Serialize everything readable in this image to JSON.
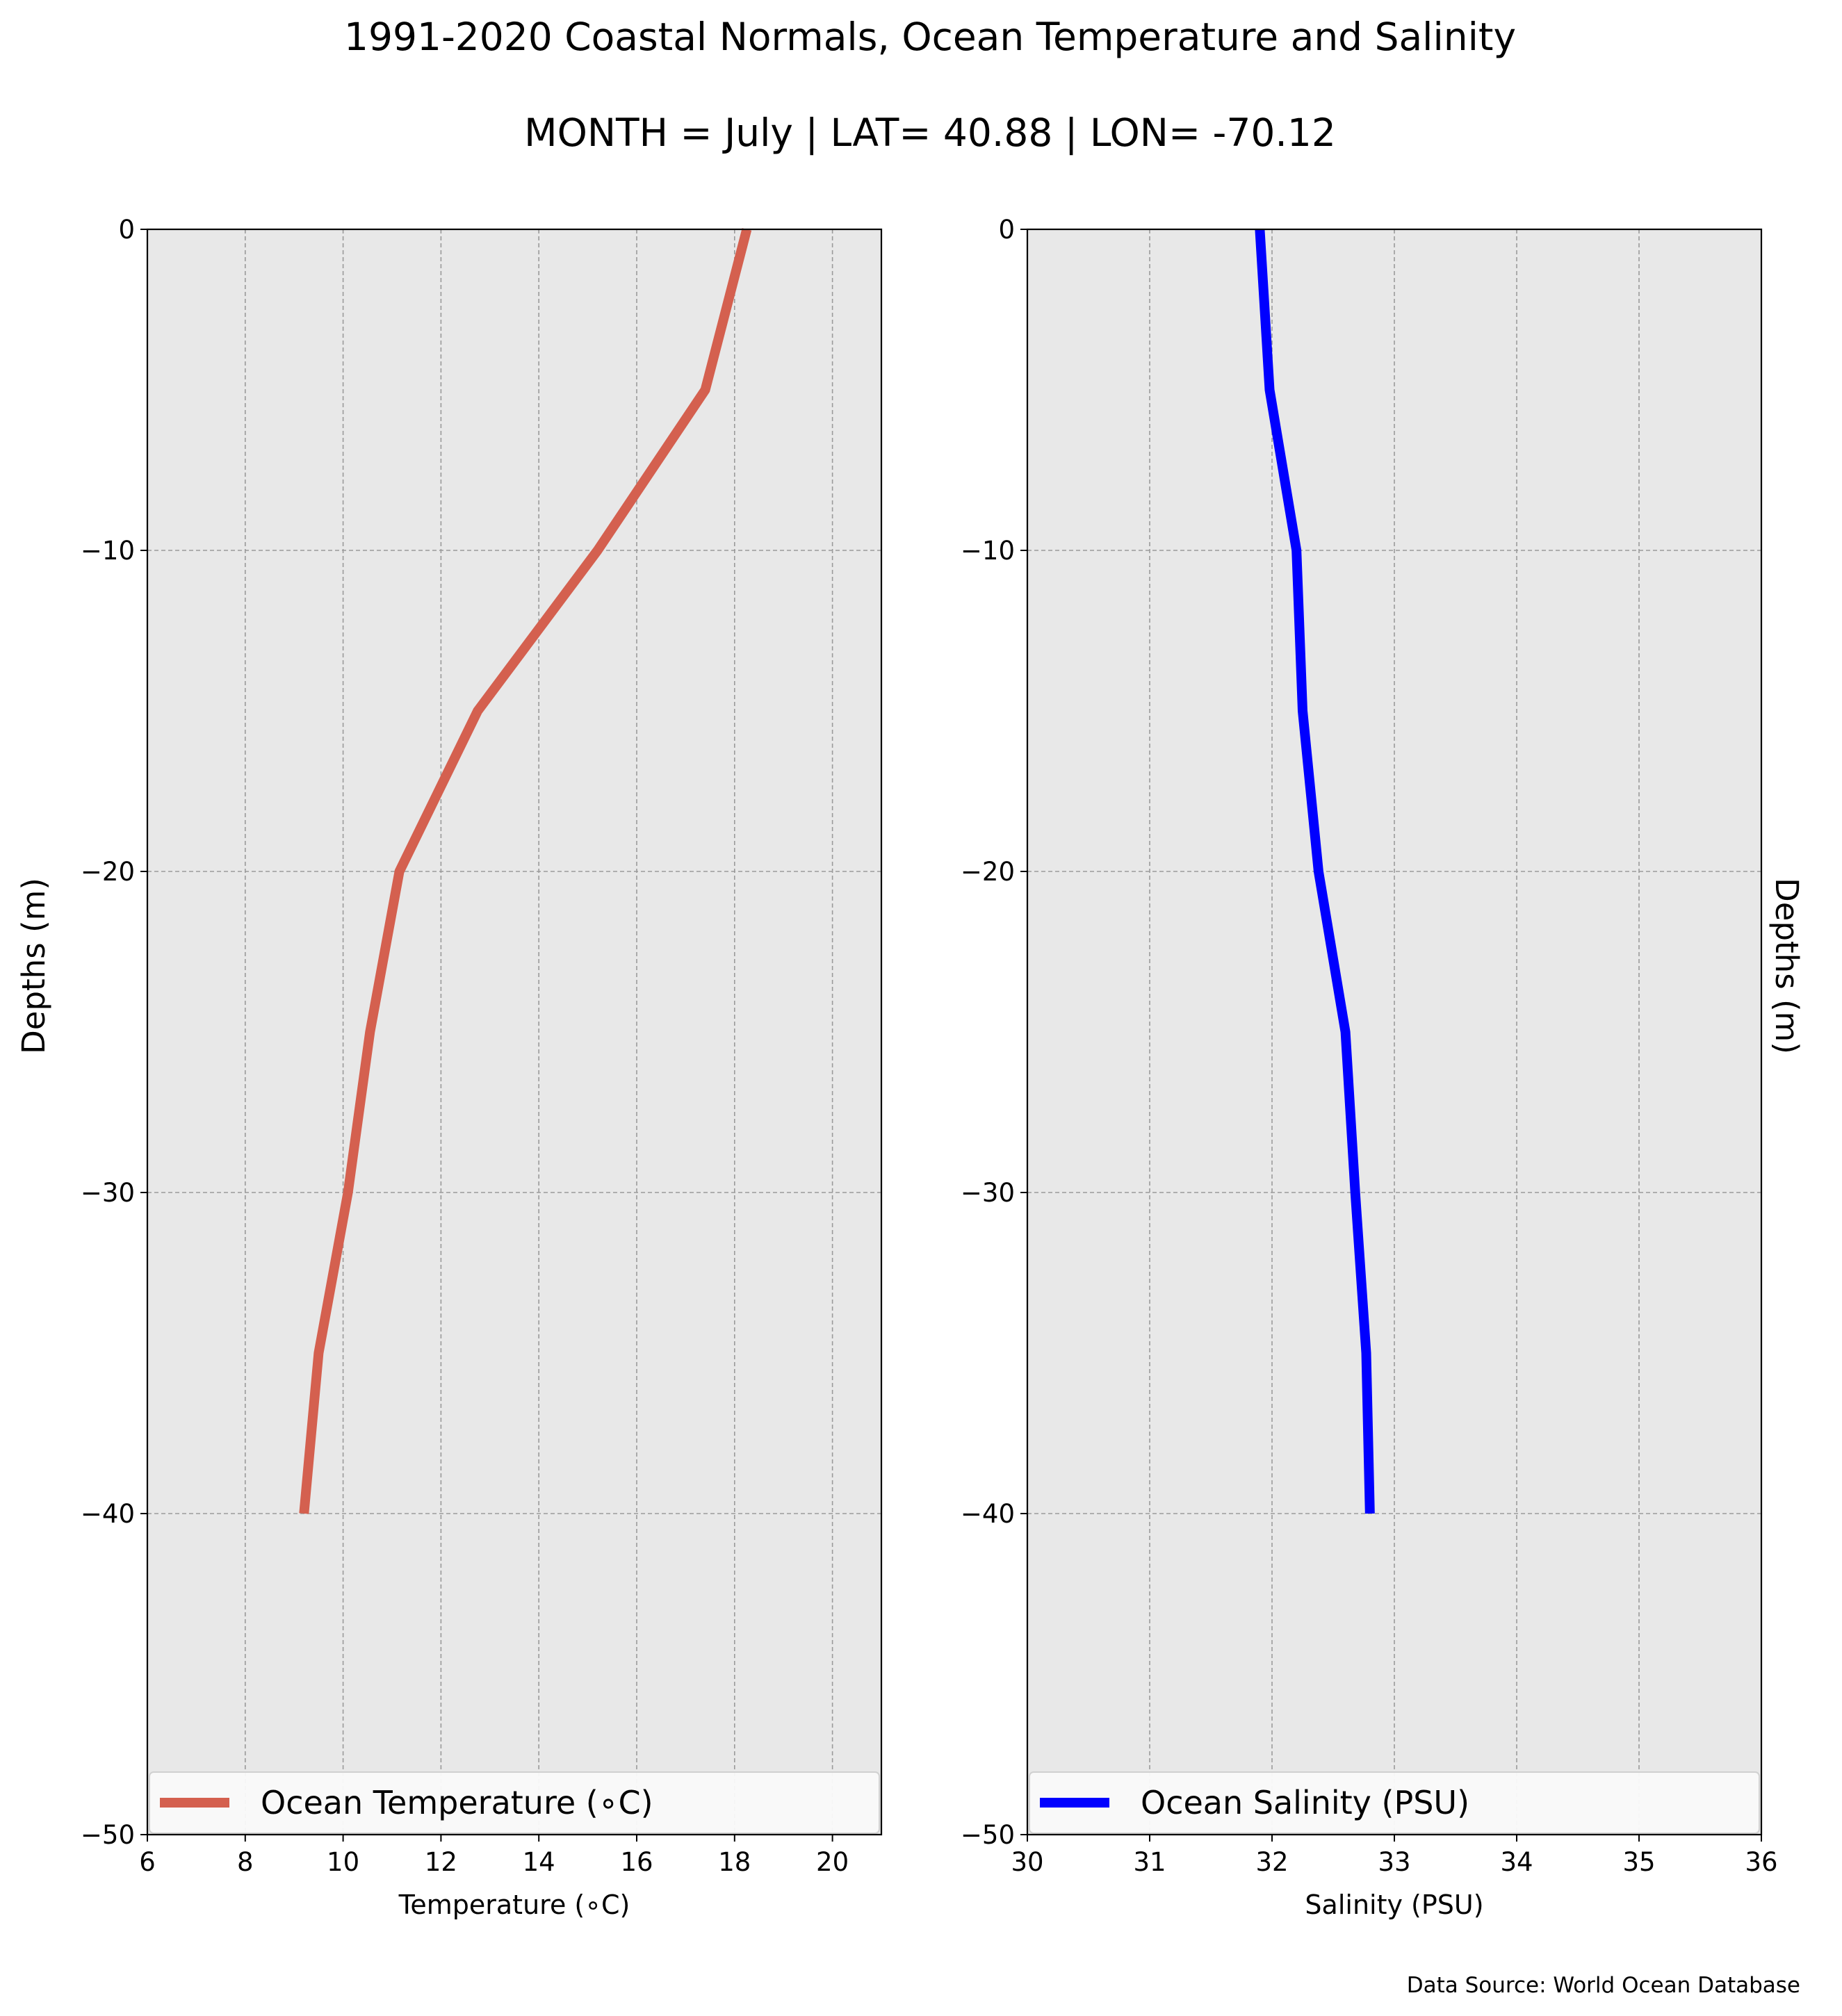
{
  "title": "1991-2020 Coastal Normals, Ocean Temperature and Salinity",
  "subtitle": "MONTH = July | LAT= 40.88 | LON= -70.12",
  "source": "Data Source: World Ocean Database",
  "chart_data": [
    {
      "type": "line",
      "xlabel": "Temperature ($^\\circ$C)",
      "xlabel_display": "Temperature (∘C)",
      "ylabel": "Depths (m)",
      "xlim": [
        6,
        21
      ],
      "ylim": [
        -50,
        0
      ],
      "xticks": [
        6,
        8,
        10,
        12,
        14,
        16,
        18,
        20
      ],
      "yticks": [
        0,
        -10,
        -20,
        -30,
        -40,
        -50
      ],
      "ytick_labels": [
        "0",
        "−10",
        "−20",
        "−30",
        "−40",
        "−50"
      ],
      "grid": true,
      "legend_position": "bottom",
      "series": [
        {
          "name": "Ocean Temperature (∘C)",
          "color": "#d4604f",
          "x": [
            18.25,
            17.4,
            15.2,
            12.75,
            11.15,
            10.55,
            10.1,
            9.5,
            9.2
          ],
          "y": [
            0,
            -5,
            -10,
            -15,
            -20,
            -25,
            -30,
            -35,
            -40
          ]
        }
      ]
    },
    {
      "type": "line",
      "xlabel": "Salinity (PSU)",
      "ylabel": "Depths (m)",
      "xlim": [
        30,
        36
      ],
      "ylim": [
        -50,
        0
      ],
      "xticks": [
        30,
        31,
        32,
        33,
        34,
        35,
        36
      ],
      "yticks": [
        0,
        -10,
        -20,
        -30,
        -40,
        -50
      ],
      "ytick_labels": [
        "0",
        "−10",
        "−20",
        "−30",
        "−40",
        "−50"
      ],
      "grid": true,
      "legend_position": "bottom",
      "series": [
        {
          "name": "Ocean Salinity (PSU)",
          "color": "#0000ff",
          "x": [
            31.9,
            31.98,
            32.2,
            32.25,
            32.38,
            32.6,
            32.68,
            32.77,
            32.8
          ],
          "y": [
            0,
            -5,
            -10,
            -15,
            -20,
            -25,
            -30,
            -35,
            -40
          ]
        }
      ]
    }
  ]
}
